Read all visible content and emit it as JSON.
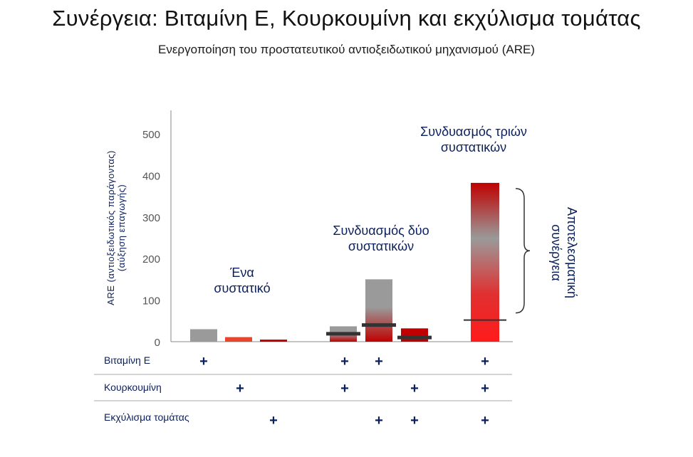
{
  "title": "Συνέργεια: Βιταμίνη Ε, Κουρκουμίνη και εκχύλισμα τομάτας",
  "subtitle": "Ενεργοποίηση του προστατευτικού αντιοξειδωτικού μηχανισμού (ARE)",
  "chart_data": {
    "type": "bar",
    "ylabel_line1": "ARE (αντιοξειδωτικός παράγοντας)",
    "ylabel_line2": "(αύξηση επαγωγής)",
    "ylim": [
      0,
      550
    ],
    "yticks": [
      0,
      100,
      200,
      300,
      400,
      500
    ],
    "grid": false,
    "bars": [
      {
        "value": 30,
        "style": "gray"
      },
      {
        "value": 11,
        "style": "red"
      },
      {
        "value": 5,
        "style": "darkred"
      },
      {
        "value": 37,
        "style": "gray-red",
        "expected": 19
      },
      {
        "value": 150,
        "style": "gray-red",
        "expected": 40
      },
      {
        "value": 32,
        "style": "darkred",
        "expected": 10
      },
      {
        "value": 382,
        "style": "red-gray-red",
        "expected": 52
      }
    ],
    "annotations": {
      "single": "Ένα\nσυστατικό",
      "double": "Συνδυασμός δύο\nσυστατικών",
      "triple": "Συνδυασμός τριών\nσυστατικών",
      "synergy": "Αποτελεσματική\nσυνέργεια"
    },
    "rows": [
      {
        "label": "Βιταμίνη Ε",
        "plus": [
          true,
          false,
          false,
          true,
          true,
          false,
          true
        ]
      },
      {
        "label": "Κουρκουμίνη",
        "plus": [
          false,
          true,
          false,
          true,
          false,
          true,
          true
        ]
      },
      {
        "label": "Εκχύλισμα τομάτας",
        "plus": [
          false,
          false,
          true,
          false,
          true,
          true,
          true
        ]
      }
    ],
    "plus_symbol": "+",
    "colors": {
      "gray": "#9a9a9a",
      "red": "#e8452c",
      "bright_red": "#ff1a1a",
      "dark_red": "#c00000",
      "expected_line": "#333333",
      "text_navy": "#0a1f5c"
    }
  }
}
